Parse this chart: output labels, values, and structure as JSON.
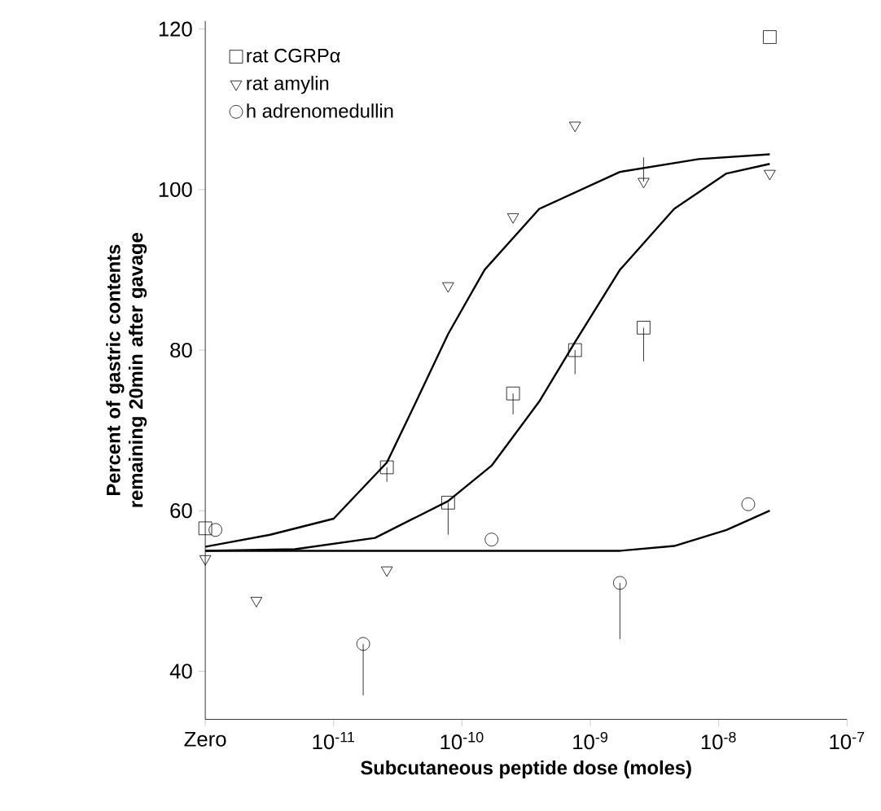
{
  "chart_data": {
    "type": "scatter",
    "xlabel": "Subcutaneous peptide dose (moles)",
    "ylabel": "Percent of gastric contents remaining 20min after gavage",
    "log": "x",
    "xlim": [
      1e-12,
      1e-07
    ],
    "ylim": [
      34,
      121
    ],
    "xticks": [
      {
        "value": 1e-12,
        "label": "Zero"
      },
      {
        "value": 1e-11,
        "label": "10$^{-11}$"
      },
      {
        "value": 1e-10,
        "label": "10$^{-10}$"
      },
      {
        "value": 1e-09,
        "label": "10$^{-9}$"
      },
      {
        "value": 1e-08,
        "label": "10$^{-8}$"
      },
      {
        "value": 1e-07,
        "label": "10$^{-7}$"
      }
    ],
    "yticks": [
      40,
      60,
      80,
      100,
      120
    ],
    "grid": false,
    "legend": "top left",
    "series": [
      {
        "name": "rat CGRPα",
        "marker": "square",
        "color": "#000000",
        "x": [
          1e-12,
          2.6e-11,
          7.8e-11,
          2.5e-10,
          7.6e-10,
          2.6e-09,
          2.5e-08
        ],
        "values": [
          57.8,
          65.4,
          61,
          74.6,
          80,
          82.8,
          119
        ],
        "errors": [
          null,
          [
            63.6,
            65.4
          ],
          [
            57,
            61
          ],
          [
            72,
            74.6
          ],
          [
            77,
            80
          ],
          [
            78.6,
            82.8
          ],
          null
        ]
      },
      {
        "name": "rat amylin",
        "marker": "triangle",
        "color": "#000000",
        "x": [
          1e-12,
          2.5e-12,
          2.6e-11,
          7.8e-11,
          2.5e-10,
          7.6e-10,
          2.6e-09,
          2.5e-08
        ],
        "values": [
          54,
          48.8,
          52.6,
          88,
          96.6,
          108,
          101,
          102
        ],
        "errors": [
          null,
          null,
          null,
          null,
          null,
          null,
          [
            101,
            104
          ],
          null
        ]
      },
      {
        "name": "h adrenomedullin",
        "marker": "circle",
        "color": "#000000",
        "x": [
          1.2e-12,
          1.7e-11,
          1.7e-10,
          1.7e-09,
          1.7e-08
        ],
        "values": [
          57.6,
          43.4,
          56.4,
          51,
          60.8
        ],
        "errors": [
          null,
          [
            37,
            43.4
          ],
          null,
          [
            44,
            51
          ],
          null
        ]
      },
      {
        "type": "line",
        "marker": "none",
        "color": "#000000",
        "x": [
          1e-12,
          3.2e-12,
          1e-11,
          2.6e-11,
          4.4e-11,
          7.8e-11,
          1.5e-10,
          4e-10,
          1.7e-09,
          7e-09,
          2.5e-08
        ],
        "values": [
          55.5,
          57,
          59,
          66,
          73.6,
          82,
          90,
          97.6,
          102.2,
          103.8,
          104.4
        ]
      },
      {
        "type": "line",
        "marker": "none",
        "color": "#000000",
        "x": [
          1e-12,
          5e-12,
          2.1e-11,
          7.8e-11,
          1.7e-10,
          4e-10,
          7.6e-10,
          1.7e-09,
          4.5e-09,
          1.15e-08,
          2.5e-08
        ],
        "values": [
          55,
          55.2,
          56.6,
          61.2,
          65.6,
          73.6,
          81,
          90,
          97.6,
          102,
          103.2
        ]
      },
      {
        "type": "line",
        "marker": "none",
        "color": "#000000",
        "x": [
          1e-12,
          1e-10,
          1.7e-09,
          4.5e-09,
          1.15e-08,
          2.5e-08
        ],
        "values": [
          55,
          55,
          55,
          55.6,
          57.6,
          60
        ]
      }
    ]
  }
}
